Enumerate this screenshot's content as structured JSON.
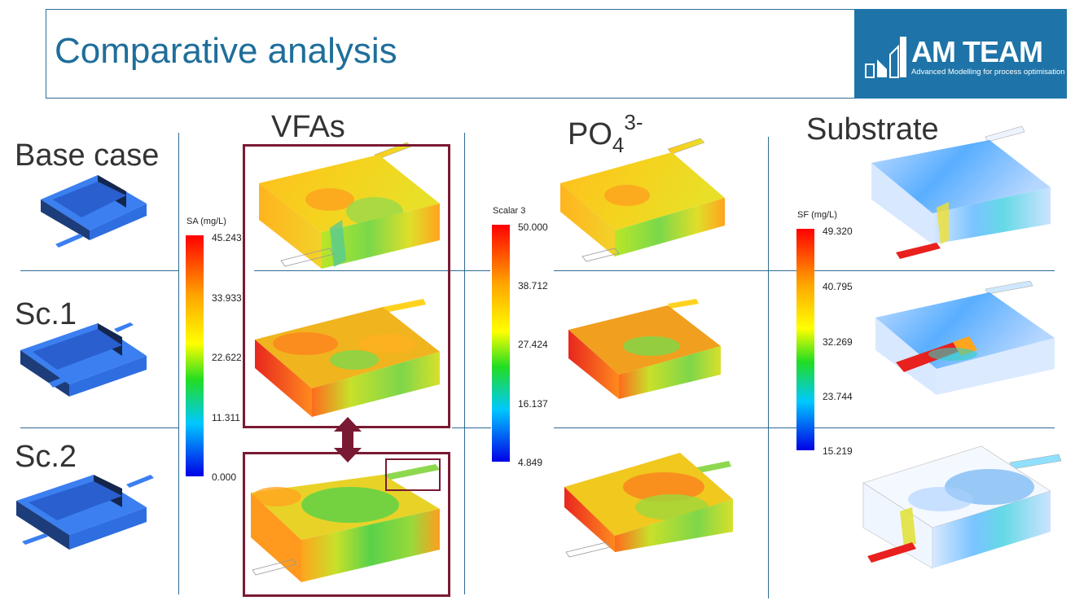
{
  "header": {
    "title": "Comparative analysis",
    "logo_text": "AM TEAM",
    "logo_subtitle": "Advanced Modelling for process optimisation"
  },
  "columns": {
    "vfas": "VFAs",
    "po4_base": "PO",
    "po4_sub": "4",
    "po4_sup": "3-",
    "substrate": "Substrate"
  },
  "rows": {
    "base": "Base case",
    "sc1": "Sc.1",
    "sc2": "Sc.2"
  },
  "colorbars": {
    "sa": {
      "title": "SA (mg/L)",
      "ticks": [
        "45.243",
        "33.933",
        "22.622",
        "11.311",
        "0.000"
      ]
    },
    "scalar3": {
      "title": "Scalar 3",
      "ticks": [
        "50.000",
        "38.712",
        "27.424",
        "16.137",
        "4.849"
      ]
    },
    "sf": {
      "title": "SF (mg/L)",
      "ticks": [
        "49.320",
        "40.795",
        "32.269",
        "23.744",
        "15.219"
      ]
    }
  },
  "colors": {
    "accent": "#1f6e9a",
    "logo_bg": "#1e74a8",
    "highlight": "#7a1a32",
    "reactor_blue": "#3b7ff0"
  }
}
